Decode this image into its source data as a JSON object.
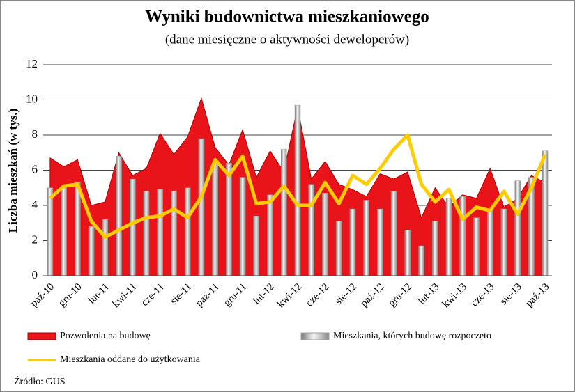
{
  "chart_data": {
    "type": "combo",
    "title": "Wyniki budownictwa mieszkaniowego",
    "subtitle": "(dane miesięczne o aktywności deweloperów)",
    "y_label": "Liczba mieszkań (w tys.)",
    "source": "Źródło: GUS",
    "categories": [
      "paź-10",
      null,
      "gru-10",
      null,
      "lut-11",
      null,
      "kwi-11",
      null,
      "cze-11",
      null,
      "sie-11",
      null,
      "paź-11",
      null,
      "gru-11",
      null,
      "lut-12",
      null,
      "kwi-12",
      null,
      "cze-12",
      null,
      "sie-12",
      null,
      "paź-12",
      null,
      "gru-12",
      null,
      "lut-13",
      null,
      "kwi-13",
      null,
      "cze-13",
      null,
      "sie-13",
      null,
      "paź-13"
    ],
    "series": [
      {
        "name": "Pozwolenia na budowę",
        "type": "area",
        "color": "#e8141a",
        "values": [
          6.7,
          6.2,
          6.6,
          4.0,
          4.2,
          7.0,
          5.7,
          6.1,
          8.1,
          6.9,
          7.9,
          10.1,
          7.3,
          6.3,
          8.3,
          5.6,
          7.1,
          5.9,
          9.6,
          5.5,
          6.5,
          5.2,
          4.9,
          4.5,
          5.8,
          5.5,
          5.9,
          3.3,
          5.0,
          3.9,
          4.6,
          4.4,
          6.1,
          3.9,
          4.4,
          5.7,
          5.3
        ]
      },
      {
        "name": "Mieszkania, których budowę rozpoczęto",
        "type": "bar",
        "color": "#a0a0a0",
        "values": [
          5.0,
          5.0,
          5.3,
          2.8,
          3.2,
          6.8,
          5.5,
          4.8,
          4.9,
          4.8,
          5.0,
          7.8,
          6.4,
          6.4,
          5.6,
          3.4,
          4.6,
          7.2,
          9.7,
          5.2,
          4.7,
          3.1,
          3.8,
          4.3,
          3.8,
          4.8,
          2.6,
          1.7,
          3.1,
          4.4,
          4.5,
          3.3,
          3.7,
          3.8,
          5.4,
          5.6,
          7.1
        ]
      },
      {
        "name": "Mieszkania oddane do użytkowania",
        "type": "line",
        "color": "#ffcc00",
        "values": [
          4.4,
          5.1,
          5.2,
          3.1,
          2.2,
          2.6,
          3.0,
          3.3,
          3.4,
          3.8,
          3.3,
          4.5,
          6.6,
          5.7,
          6.8,
          4.1,
          4.2,
          5.1,
          4.0,
          4.0,
          5.3,
          4.1,
          5.7,
          5.2,
          6.1,
          7.2,
          8.0,
          5.2,
          4.2,
          4.9,
          3.2,
          3.9,
          3.7,
          4.8,
          3.5,
          5.0,
          6.9
        ]
      }
    ],
    "ylim": [
      0,
      12
    ],
    "yticks": [
      0,
      2,
      4,
      6,
      8,
      10,
      12
    ],
    "grid": true
  }
}
